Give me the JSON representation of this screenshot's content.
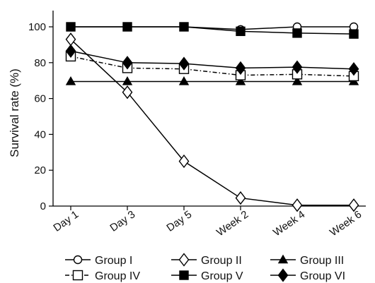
{
  "chart_data": {
    "type": "line",
    "title": "",
    "xlabel": "",
    "ylabel": "Survival rate (%)",
    "ylim": [
      0,
      110
    ],
    "yticks": [
      "0",
      "20",
      "40",
      "60",
      "80",
      "100"
    ],
    "categories": [
      "Day 1",
      "Day 3",
      "Day 5",
      "Week 2",
      "Week 4",
      "Week 6"
    ],
    "grid": false,
    "legend_position": "bottom",
    "series": [
      {
        "name": "Group I",
        "values": [
          100,
          100,
          100,
          98.5,
          100,
          100
        ],
        "marker": "circle-open",
        "line": "solid",
        "color": "#000000"
      },
      {
        "name": "Group II",
        "values": [
          93,
          63.5,
          25,
          4.5,
          0.5,
          0.5
        ],
        "marker": "diamond-open",
        "line": "solid",
        "color": "#000000"
      },
      {
        "name": "Group III",
        "values": [
          69.5,
          69.5,
          69.5,
          69.5,
          69.5,
          69.5
        ],
        "marker": "triangle-filled",
        "line": "solid",
        "color": "#000000"
      },
      {
        "name": "Group IV",
        "values": [
          83.5,
          77,
          76.5,
          73,
          73.5,
          72.5
        ],
        "marker": "square-open",
        "line": "dashdot",
        "color": "#000000"
      },
      {
        "name": "Group V",
        "values": [
          100,
          100,
          100,
          97.5,
          96.5,
          96
        ],
        "marker": "square-filled",
        "line": "solid",
        "color": "#000000"
      },
      {
        "name": "Group VI",
        "values": [
          86.5,
          80,
          79.5,
          77,
          77.5,
          76.5
        ],
        "marker": "diamond-filled",
        "line": "solid",
        "color": "#000000"
      }
    ]
  }
}
